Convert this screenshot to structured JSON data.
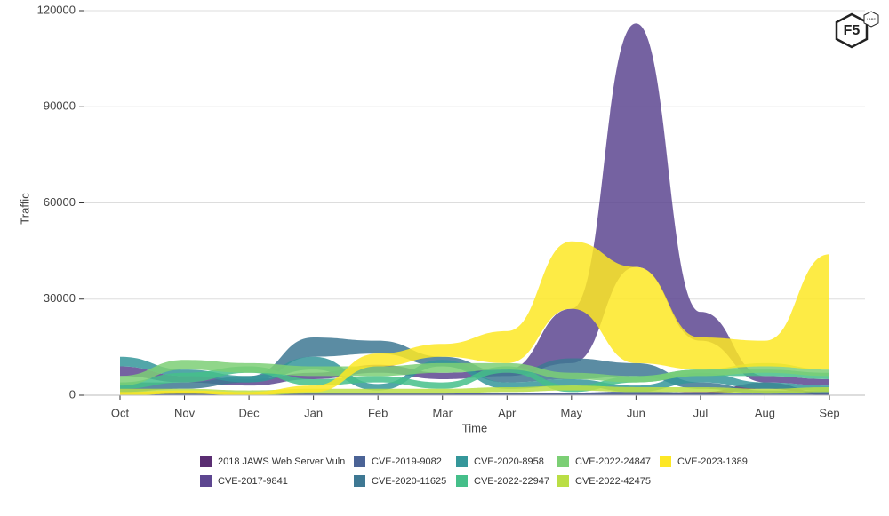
{
  "logo": {
    "text": "F5",
    "sub": "LABS"
  },
  "chart_data": {
    "type": "ribbon",
    "x_label": "Time",
    "y_label": "Traffic",
    "categories": [
      "Oct",
      "Nov",
      "Dec",
      "Jan",
      "Feb",
      "Mar",
      "Apr",
      "May",
      "Jun",
      "Jul",
      "Aug",
      "Sep"
    ],
    "ylim": [
      0,
      120000
    ],
    "yticks": [
      0,
      30000,
      60000,
      90000,
      120000
    ],
    "grid": true,
    "series": [
      {
        "name": "2018 JAWS Web Server Vuln",
        "color": "#5a2d72",
        "lower": [
          0,
          0,
          0,
          0,
          0,
          0,
          0,
          0,
          0,
          0,
          2000,
          0
        ],
        "upper": [
          1000,
          1000,
          500,
          500,
          500,
          500,
          500,
          500,
          500,
          1000,
          4000,
          500
        ]
      },
      {
        "name": "CVE-2017-9841",
        "color": "#5d4690",
        "lower": [
          6000,
          4000,
          3000,
          5000,
          7000,
          5000,
          6000,
          10000,
          40000,
          17000,
          4000,
          3000
        ],
        "upper": [
          9000,
          6000,
          5000,
          7000,
          9500,
          7000,
          8000,
          27000,
          116000,
          26000,
          6000,
          5000
        ]
      },
      {
        "name": "CVE-2019-9082",
        "color": "#4b6396",
        "lower": [
          0,
          0,
          0,
          0,
          0,
          0,
          0,
          0,
          0,
          0,
          0,
          0
        ],
        "upper": [
          1000,
          800,
          800,
          800,
          800,
          800,
          800,
          800,
          1200,
          800,
          800,
          800
        ]
      },
      {
        "name": "CVE-2020-11625",
        "color": "#3e7893",
        "lower": [
          1000,
          2000,
          4000,
          12000,
          13000,
          9000,
          4000,
          5000,
          6000,
          2000,
          500,
          500
        ],
        "upper": [
          4000,
          4000,
          6000,
          18000,
          17000,
          12000,
          7000,
          11500,
          10000,
          4000,
          1500,
          1500
        ]
      },
      {
        "name": "CVE-2020-8958",
        "color": "#35979a",
        "lower": [
          9000,
          6000,
          4000,
          8000,
          1500,
          9000,
          2000,
          3000,
          1000,
          4000,
          2000,
          1500
        ],
        "upper": [
          12000,
          8000,
          6000,
          12000,
          3500,
          11000,
          4000,
          5000,
          3000,
          7000,
          4000,
          3000
        ]
      },
      {
        "name": "CVE-2022-22947",
        "color": "#45bf8a",
        "lower": [
          2000,
          4000,
          7000,
          3000,
          4000,
          2000,
          7000,
          1000,
          4000,
          6000,
          6000,
          5000
        ],
        "upper": [
          4000,
          7000,
          9000,
          5000,
          6000,
          4000,
          9000,
          3000,
          6000,
          8000,
          8000,
          7000
        ]
      },
      {
        "name": "CVE-2022-24847",
        "color": "#7ccf75",
        "lower": [
          3000,
          8000,
          7000,
          6000,
          6000,
          7000,
          8000,
          5000,
          4000,
          6000,
          7000,
          6000
        ],
        "upper": [
          6000,
          11000,
          10000,
          9000,
          9000,
          10000,
          10000,
          7000,
          6000,
          8000,
          10000,
          8000
        ]
      },
      {
        "name": "CVE-2022-42475",
        "color": "#bade45",
        "lower": [
          0,
          500,
          0,
          500,
          500,
          500,
          1000,
          1500,
          1000,
          1000,
          500,
          1000
        ],
        "upper": [
          2000,
          2000,
          1500,
          2000,
          2000,
          2000,
          2500,
          3000,
          2500,
          2500,
          2000,
          2500
        ]
      },
      {
        "name": "CVE-2023-1389",
        "color": "#fde725",
        "lower": [
          0,
          500,
          0,
          1000,
          9000,
          12000,
          10000,
          27000,
          10000,
          8000,
          9000,
          8000
        ],
        "upper": [
          1000,
          1500,
          1000,
          3000,
          13000,
          16000,
          20000,
          48000,
          40000,
          18000,
          17000,
          44000
        ]
      }
    ]
  }
}
